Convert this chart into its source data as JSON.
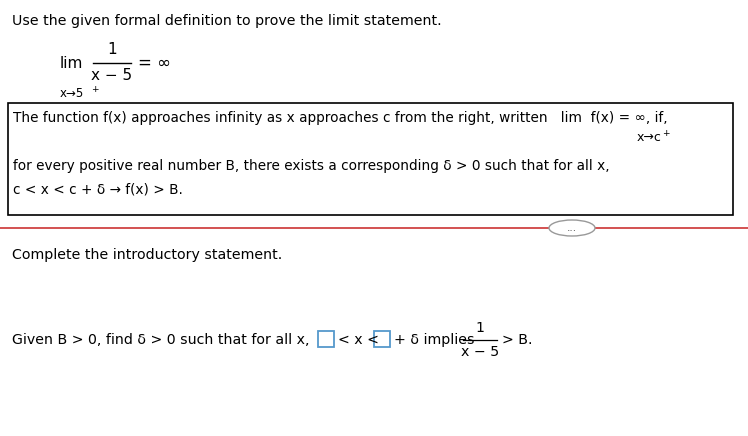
{
  "title_text": "Use the given formal definition to prove the limit statement.",
  "limit_lim": "lim",
  "limit_num": "1",
  "limit_den": "x − 5",
  "limit_subscript": "x→5",
  "limit_plus": "+",
  "limit_eq": "= ∞",
  "box_line1": "The function f(x) approaches infinity as x approaches c from the right, written   lim  f(x) = ∞, if,",
  "box_sub": "x→c",
  "box_sub_plus": "+",
  "box_line3": "for every positive real number B, there exists a corresponding δ > 0 such that for all x,",
  "box_line4": "c < x < c + δ → f(x) > B.",
  "dots_text": "...",
  "complete_text": "Complete the introductory statement.",
  "given_prefix": "Given B > 0, find δ > 0 such that for all x,",
  "given_lt_x_lt": "< x <",
  "given_suffix": "+ δ implies",
  "frac_num": "1",
  "frac_den": "x − 5",
  "given_end": "> B.",
  "bg_color": "#ffffff",
  "text_color": "#000000",
  "box_edge_color": "#000000",
  "line_color": "#cc3333",
  "dots_border_color": "#999999",
  "blue_box_color": "#5599cc"
}
